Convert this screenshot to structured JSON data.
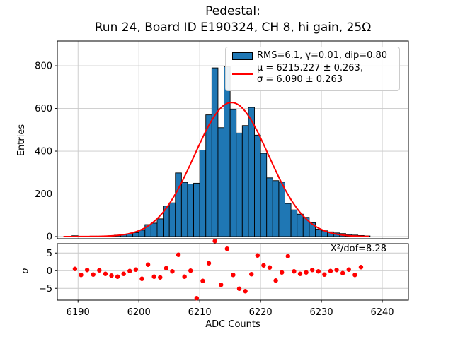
{
  "figure": {
    "title_line1": "Pedestal:",
    "title_line2": "Run 24, Board ID E190324, CH 8, hi gain, 25Ω",
    "background": "#ffffff"
  },
  "chart_data": {
    "type": "bar",
    "subtype": "histogram_with_gaussian_fit_and_residuals",
    "title_line1": "Pedestal:",
    "title_line2": "Run 24, Board ID E190324, CH 8, hi gain, 25Ω",
    "main_panel": {
      "ylabel": "Entries",
      "xlim": [
        6186.6,
        6244.3
      ],
      "ylim": [
        -10,
        916
      ],
      "xticks": [
        6190,
        6200,
        6210,
        6220,
        6230,
        6240
      ],
      "yticks": [
        0,
        200,
        400,
        600,
        800
      ],
      "grid": true,
      "histogram": {
        "bin_start": 6189,
        "bin_width": 1,
        "counts": [
          4,
          1,
          1,
          2,
          2,
          3,
          4,
          7,
          9,
          12,
          18,
          30,
          56,
          63,
          83,
          143,
          158,
          298,
          254,
          246,
          250,
          405,
          570,
          790,
          510,
          795,
          595,
          485,
          520,
          605,
          475,
          390,
          275,
          262,
          255,
          155,
          125,
          105,
          90,
          65,
          35,
          27,
          22,
          17,
          14,
          10,
          7,
          5,
          3
        ],
        "fill_color": "#1f77b4",
        "edge_color": "#000000"
      },
      "fit": {
        "shape": "gaussian",
        "amplitude": 628,
        "mu": 6215.227,
        "sigma": 6.09,
        "x_range": [
          6187.6,
          6237.8
        ],
        "color": "#ff0000"
      },
      "legend": {
        "entries": [
          {
            "swatch": "histogram-patch",
            "label": "RMS=6.1, γ=0.01, dip=0.80"
          },
          {
            "swatch": "fit-line",
            "label_line1": "μ = 6215.227 ± 0.263,",
            "label_line2": "σ = 6.090 ± 0.263"
          }
        ],
        "position": "upper right"
      }
    },
    "residual_panel": {
      "ylabel": "σ",
      "xlabel": "ADC Counts",
      "ylim": [
        -8.35,
        7.65
      ],
      "yticks": [
        5,
        0,
        -5
      ],
      "ytick_labels": [
        "5",
        "0",
        "−5"
      ],
      "annotation": "X²/dof=8.28",
      "marker_color": "#ff0000",
      "points_x_start": 6189.5,
      "points_x_step": 1,
      "sigmas": [
        0.5,
        -1.2,
        0.2,
        -1.1,
        0.1,
        -0.9,
        -1.4,
        -1.7,
        -0.9,
        -0.1,
        0.3,
        -2.3,
        1.7,
        -1.7,
        -1.9,
        0.7,
        -0.2,
        4.5,
        -1.7,
        0.0,
        -7.8,
        -2.9,
        2.1,
        8.4,
        -4.0,
        6.2,
        -1.2,
        -5.1,
        -5.8,
        -1.0,
        4.3,
        1.5,
        0.9,
        -2.8,
        -0.5,
        4.1,
        -0.2,
        -0.9,
        -0.5,
        0.2,
        -0.2,
        -1.1,
        -0.1,
        0.2,
        -0.7,
        0.3,
        -1.2,
        1.0
      ]
    },
    "colors": {
      "bar_fill": "#1f77b4",
      "bar_edge": "#000000",
      "fit_line": "#ff0000",
      "residual_marker": "#ff0000",
      "grid": "#c9c9c9",
      "axes_frame": "#000000"
    }
  }
}
